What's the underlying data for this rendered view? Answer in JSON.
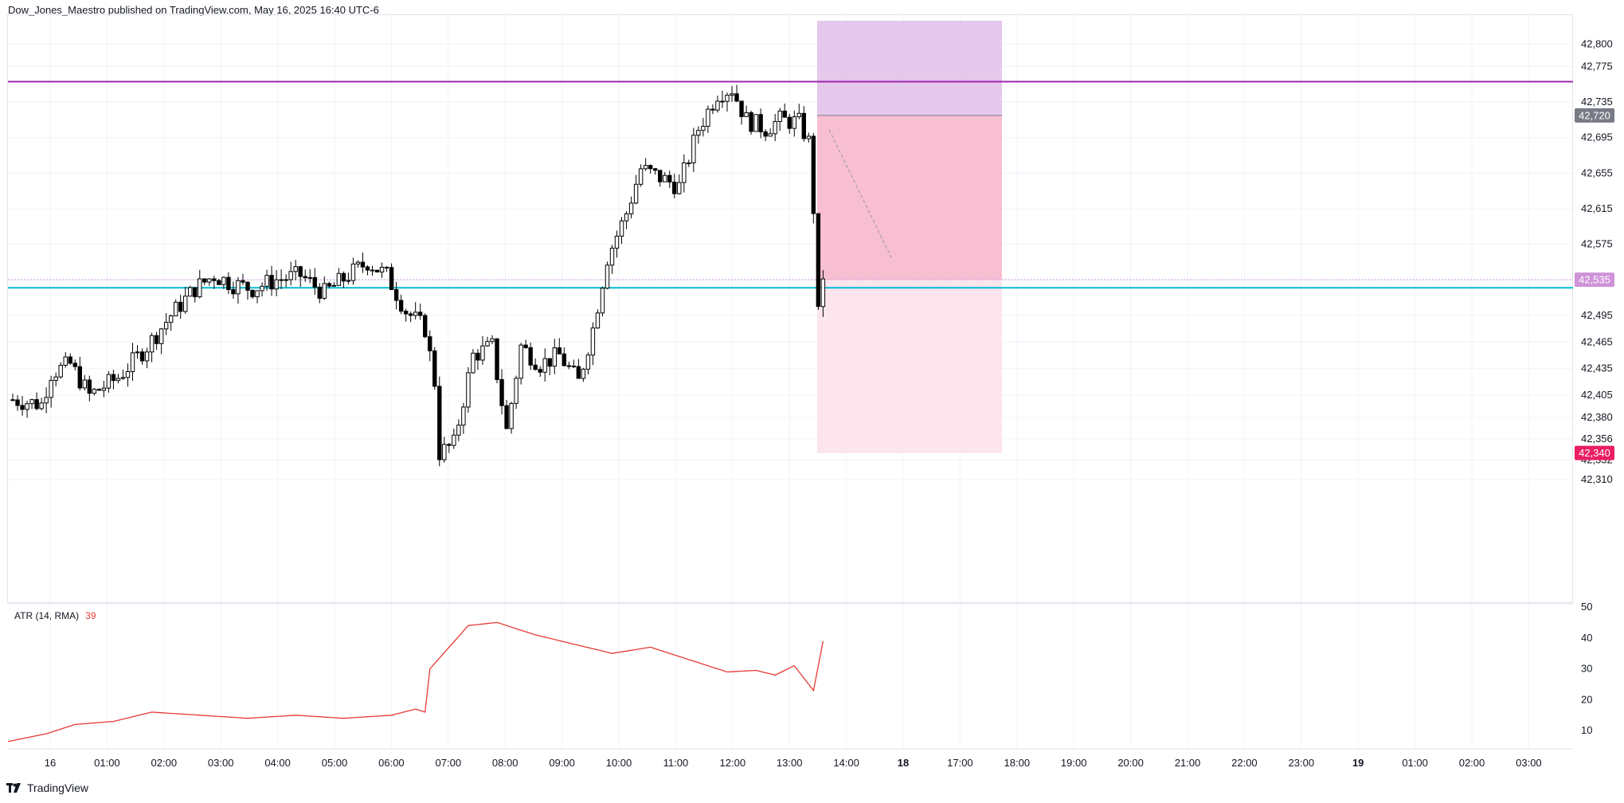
{
  "header": {
    "publisher": "Dow_Jones_Maestro",
    "published_on": "published on TradingView.com, May 16, 2025 16:40 UTC-6"
  },
  "footer": {
    "brand": "TradingView",
    "logo_icon": "tradingview-logo-icon"
  },
  "colors": {
    "resistance_line": "#9c27b0",
    "support_line": "#00bcd4",
    "target_zone": "#e1bee7",
    "stop_zone_dark": "#f8bbd0",
    "stop_zone_light": "#fce4ec",
    "atr_line": "#e53935",
    "up_candle": "#ffffff",
    "down_candle": "#000000"
  },
  "price_tags": [
    {
      "value": "42,720",
      "price": 42720,
      "color": "#787b86"
    },
    {
      "value": "42,535",
      "price": 42535,
      "color": "#ce93d8"
    },
    {
      "value": "42,340",
      "price": 42340,
      "color": "#e91e63"
    }
  ],
  "chart_data": {
    "type": "candlestick",
    "symbol_info": "",
    "y_axis": {
      "ylim": [
        42285,
        42820
      ],
      "ticks": [
        42800,
        42775,
        42735,
        42695,
        42655,
        42615,
        42575,
        42535,
        42495,
        42465,
        42435,
        42405,
        42380,
        42356,
        42332,
        42310
      ],
      "tick_labels": [
        "42,800",
        "42,775",
        "42,735",
        "42,695",
        "42,655",
        "42,615",
        "42,575",
        "42,535",
        "42,495",
        "42,465",
        "42,435",
        "42,405",
        "42,380",
        "42,356",
        "42,332",
        "42,310"
      ]
    },
    "x_axis": {
      "labels": [
        "16",
        "01:00",
        "02:00",
        "03:00",
        "04:00",
        "05:00",
        "06:00",
        "07:00",
        "08:00",
        "09:00",
        "10:00",
        "11:00",
        "12:00",
        "13:00",
        "14:00",
        "18",
        "17:00",
        "18:00",
        "19:00",
        "20:00",
        "21:00",
        "22:00",
        "23:00",
        "19",
        "01:00",
        "02:00",
        "03:00"
      ],
      "bold": [
        false,
        false,
        false,
        false,
        false,
        false,
        false,
        false,
        false,
        false,
        false,
        false,
        false,
        false,
        false,
        true,
        false,
        false,
        false,
        false,
        false,
        false,
        false,
        true,
        false,
        false,
        false
      ]
    },
    "horizontal_lines": [
      {
        "name": "resistance",
        "price": 42758
      },
      {
        "name": "support",
        "price": 42526
      },
      {
        "name": "last-price-dotted",
        "price": 42535
      }
    ],
    "position_tool": {
      "entry": 42720,
      "target": 42820,
      "stop": 42340,
      "start_bar": 154,
      "end_bar": 187
    },
    "candles_anchor": [
      [
        0,
        42400
      ],
      [
        6,
        42395
      ],
      [
        8,
        42430
      ],
      [
        12,
        42440
      ],
      [
        16,
        42405
      ],
      [
        22,
        42425
      ],
      [
        28,
        42460
      ],
      [
        33,
        42495
      ],
      [
        38,
        42525
      ],
      [
        42,
        42540
      ],
      [
        46,
        42530
      ],
      [
        50,
        42525
      ],
      [
        55,
        42535
      ],
      [
        60,
        42540
      ],
      [
        65,
        42520
      ],
      [
        70,
        42540
      ],
      [
        74,
        42555
      ],
      [
        78,
        42540
      ],
      [
        82,
        42500
      ],
      [
        86,
        42480
      ],
      [
        88,
        42420
      ],
      [
        89,
        42340
      ],
      [
        92,
        42350
      ],
      [
        96,
        42450
      ],
      [
        100,
        42460
      ],
      [
        103,
        42365
      ],
      [
        106,
        42460
      ],
      [
        110,
        42440
      ],
      [
        114,
        42450
      ],
      [
        118,
        42420
      ],
      [
        121,
        42480
      ],
      [
        124,
        42560
      ],
      [
        128,
        42610
      ],
      [
        131,
        42660
      ],
      [
        135,
        42650
      ],
      [
        139,
        42640
      ],
      [
        143,
        42705
      ],
      [
        147,
        42745
      ],
      [
        150,
        42750
      ],
      [
        153,
        42715
      ],
      [
        157,
        42705
      ],
      [
        160,
        42715
      ],
      [
        164,
        42712
      ],
      [
        166,
        42690
      ],
      [
        167,
        42615
      ],
      [
        168,
        42495
      ],
      [
        169,
        42540
      ]
    ],
    "atr": {
      "title": "ATR (14, RMA)",
      "last_value": "39",
      "ylim": [
        0,
        50
      ],
      "ticks": [
        50,
        40,
        30,
        20,
        10
      ],
      "anchors": [
        [
          0,
          6.5
        ],
        [
          8,
          9
        ],
        [
          14,
          12
        ],
        [
          22,
          13
        ],
        [
          30,
          16
        ],
        [
          40,
          15
        ],
        [
          50,
          14
        ],
        [
          60,
          15
        ],
        [
          70,
          14
        ],
        [
          80,
          15
        ],
        [
          85,
          17
        ],
        [
          87,
          16
        ],
        [
          88,
          30
        ],
        [
          92,
          37
        ],
        [
          96,
          44
        ],
        [
          102,
          45
        ],
        [
          110,
          41
        ],
        [
          118,
          38
        ],
        [
          126,
          35
        ],
        [
          134,
          37
        ],
        [
          142,
          33
        ],
        [
          150,
          29
        ],
        [
          156,
          29.5
        ],
        [
          160,
          28
        ],
        [
          164,
          31
        ],
        [
          168,
          23
        ],
        [
          170,
          39
        ]
      ]
    }
  }
}
